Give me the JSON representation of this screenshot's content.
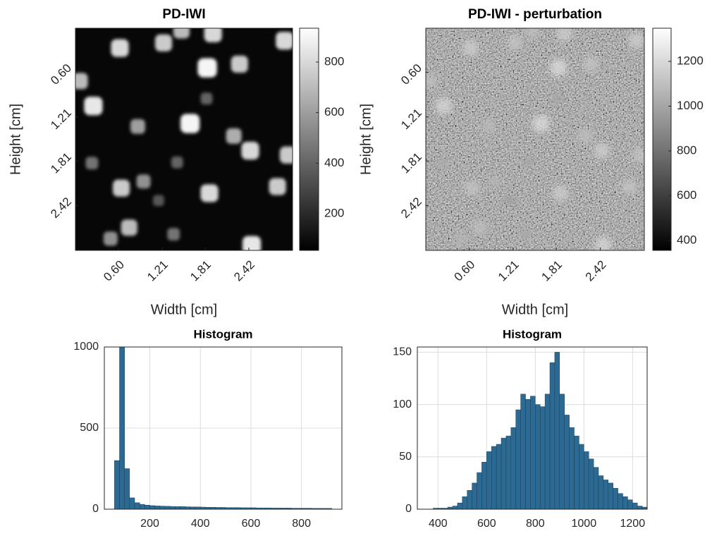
{
  "chart_data": [
    {
      "type": "image",
      "title": "PD-IWI",
      "xlabel": "Width [cm]",
      "ylabel": "Height [cm]",
      "xlim": [
        0,
        3.03
      ],
      "ylim": [
        0,
        3.03
      ],
      "xticks": [
        {
          "value": 0.6,
          "label": "0.60"
        },
        1.21,
        1.81,
        2.42
      ],
      "yticks": [
        {
          "value": 0.6,
          "label": "0.60"
        },
        1.21,
        1.81,
        2.42
      ],
      "colormap": "gray",
      "clim": [
        55,
        934
      ],
      "cticks": [
        200,
        400,
        600,
        800
      ],
      "background": 80,
      "spots": {
        "x": [
          0.62,
          1.23,
          1.48,
          1.92,
          2.92,
          1.84,
          2.29,
          0.06,
          0.25,
          1.83,
          0.87,
          1.6,
          2.21,
          2.44,
          2.97,
          0.23,
          1.42,
          0.95,
          0.64,
          1.87,
          2.82,
          1.16,
          0.75,
          0.49,
          1.37,
          2.46
        ],
        "y": [
          0.27,
          0.2,
          0.03,
          0.07,
          0.17,
          0.54,
          0.49,
          0.72,
          1.06,
          0.96,
          1.34,
          1.3,
          1.47,
          1.67,
          1.73,
          1.84,
          1.83,
          2.09,
          2.18,
          2.25,
          2.16,
          2.35,
          2.72,
          2.87,
          2.81,
          2.96
        ],
        "values": [
          800,
          750,
          700,
          800,
          800,
          900,
          750,
          700,
          850,
          400,
          600,
          900,
          650,
          800,
          750,
          450,
          400,
          550,
          750,
          800,
          750,
          350,
          700,
          550,
          450,
          850
        ]
      }
    },
    {
      "type": "image",
      "title": "PD-IWI - perturbation",
      "xlabel": "Width [cm]",
      "ylabel": "Height [cm]",
      "xlim": [
        0,
        3.03
      ],
      "ylim": [
        0,
        3.03
      ],
      "xticks": [
        {
          "value": 0.6,
          "label": "0.60"
        },
        1.21,
        1.81,
        2.42
      ],
      "yticks": [
        {
          "value": 0.6,
          "label": "0.60"
        },
        1.21,
        1.81,
        2.42
      ],
      "colormap": "gray",
      "clim": [
        356,
        1348
      ],
      "cticks": [
        400,
        600,
        800,
        1000,
        1200
      ],
      "background": 850,
      "spots": {
        "x": [
          0.62,
          1.23,
          1.48,
          1.92,
          2.92,
          1.84,
          2.29,
          0.06,
          0.25,
          1.83,
          0.87,
          1.6,
          2.21,
          2.44,
          2.97,
          0.23,
          1.42,
          0.95,
          0.64,
          1.87,
          2.82,
          1.16,
          0.75,
          0.49,
          1.37,
          2.46
        ],
        "y": [
          0.27,
          0.2,
          0.03,
          0.07,
          0.17,
          0.54,
          0.49,
          0.72,
          1.06,
          0.96,
          1.34,
          1.3,
          1.47,
          1.67,
          1.73,
          1.84,
          1.83,
          2.09,
          2.18,
          2.25,
          2.16,
          2.35,
          2.72,
          2.87,
          2.81,
          2.96
        ],
        "values": [
          1150,
          1120,
          1100,
          1150,
          1150,
          1200,
          1120,
          1100,
          1180,
          1000,
          1080,
          1200,
          1100,
          1150,
          1120,
          1020,
          1000,
          1060,
          1120,
          1150,
          1120,
          980,
          1100,
          1060,
          1020,
          1180
        ]
      }
    },
    {
      "type": "histogram",
      "title": "Histogram",
      "color": "#2d6a93",
      "grid": true,
      "xlim": [
        20,
        960
      ],
      "xticks": [
        200,
        400,
        600,
        800
      ],
      "ylim": [
        0,
        1000
      ],
      "yticks": [
        0,
        500,
        1000
      ],
      "bins": [
        60,
        80,
        100,
        120,
        140,
        160,
        180,
        200,
        220,
        240,
        260,
        280,
        300,
        320,
        340,
        360,
        380,
        400,
        420,
        440,
        460,
        480,
        500,
        520,
        540,
        560,
        580,
        600,
        620,
        640,
        660,
        680,
        700,
        720,
        740,
        760,
        780,
        800,
        820,
        840,
        860,
        880,
        900,
        920
      ],
      "values": [
        300,
        1000,
        250,
        70,
        40,
        30,
        25,
        22,
        20,
        19,
        18,
        17,
        16,
        16,
        15,
        14,
        14,
        13,
        12,
        12,
        11,
        11,
        10,
        10,
        10,
        9,
        9,
        9,
        8,
        8,
        8,
        7,
        7,
        7,
        7,
        6,
        6,
        6,
        6,
        5,
        5,
        5,
        5
      ]
    },
    {
      "type": "histogram",
      "title": "Histogram",
      "color": "#2d6a93",
      "grid": true,
      "xlim": [
        315,
        1260
      ],
      "xticks": [
        400,
        600,
        800,
        1000,
        1200
      ],
      "ylim": [
        0,
        155
      ],
      "yticks": [
        0,
        50,
        100,
        150
      ],
      "bins": [
        380,
        400,
        420,
        440,
        460,
        480,
        500,
        520,
        540,
        560,
        580,
        600,
        620,
        640,
        660,
        680,
        700,
        720,
        740,
        760,
        780,
        800,
        820,
        840,
        860,
        880,
        900,
        920,
        940,
        960,
        980,
        1000,
        1020,
        1040,
        1060,
        1080,
        1100,
        1120,
        1140,
        1160,
        1180,
        1200,
        1220,
        1240,
        1260
      ],
      "values": [
        1,
        1,
        1,
        2,
        3,
        6,
        12,
        18,
        25,
        35,
        45,
        55,
        60,
        62,
        68,
        70,
        78,
        95,
        110,
        105,
        108,
        100,
        98,
        110,
        140,
        150,
        110,
        90,
        78,
        70,
        62,
        55,
        48,
        40,
        32,
        28,
        25,
        20,
        15,
        12,
        9,
        6,
        3,
        2
      ]
    }
  ]
}
